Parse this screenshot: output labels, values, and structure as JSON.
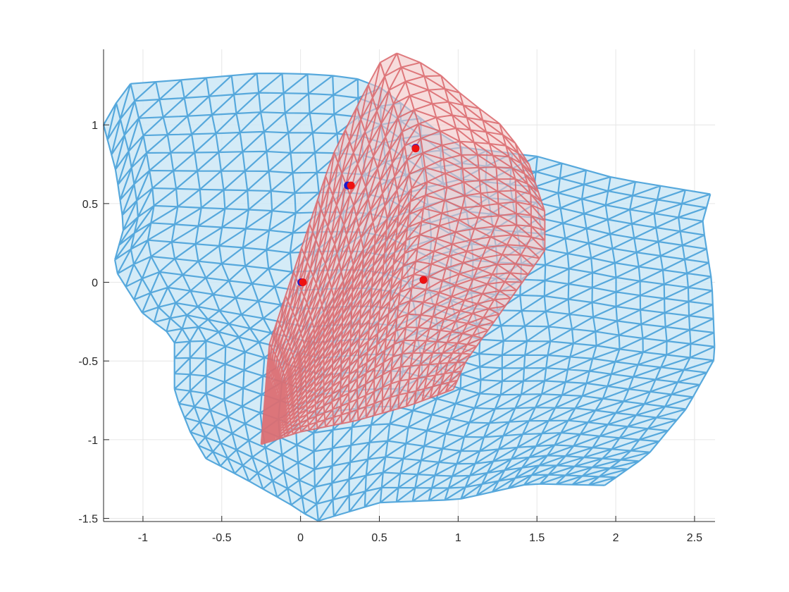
{
  "chart_data": {
    "type": "scatter",
    "title": "",
    "xlabel": "",
    "ylabel": "",
    "xlim": [
      -1.25,
      2.63
    ],
    "ylim": [
      -1.52,
      1.48
    ],
    "grid": true,
    "x_ticks": [
      -1,
      -0.5,
      0,
      0.5,
      1,
      1.5,
      2,
      2.5
    ],
    "x_tick_labels": [
      "-1",
      "-0.5",
      "0",
      "0.5",
      "1",
      "1.5",
      "2",
      "2.5"
    ],
    "y_ticks": [
      -1.5,
      -1,
      -0.5,
      0,
      0.5,
      1
    ],
    "y_tick_labels": [
      "-1.5",
      "-1",
      "-0.5",
      "0",
      "0.5",
      "1"
    ],
    "colors": {
      "mesh_blue_edge": "#56a8dc",
      "mesh_blue_fill": "#cde8f6",
      "mesh_red_edge": "#d96468",
      "mesh_red_fill": "#f2c4c4",
      "marker_blue": "#1a1acc",
      "marker_red": "#ee1111"
    },
    "series": [
      {
        "kind": "mesh",
        "color_key": "blue",
        "grid_u": 26,
        "grid_v": 24,
        "boundary": {
          "top": [
            [
              -1.25,
              1.0
            ],
            [
              -1.1,
              1.26
            ],
            [
              -0.7,
              1.29
            ],
            [
              -0.25,
              1.33
            ],
            [
              0.15,
              1.32
            ],
            [
              0.45,
              1.28
            ],
            [
              1.0,
              0.86
            ],
            [
              1.5,
              0.8
            ],
            [
              2.0,
              0.66
            ],
            [
              2.6,
              0.56
            ]
          ],
          "right": [
            [
              2.6,
              0.56
            ],
            [
              2.55,
              0.38
            ],
            [
              2.61,
              0.0
            ],
            [
              2.63,
              -0.48
            ],
            [
              2.45,
              -0.8
            ],
            [
              2.2,
              -1.1
            ],
            [
              1.93,
              -1.29
            ]
          ],
          "bottom": [
            [
              -0.6,
              -1.12
            ],
            [
              -0.35,
              -1.25
            ],
            [
              -0.05,
              -1.42
            ],
            [
              0.1,
              -1.52
            ],
            [
              0.5,
              -1.4
            ],
            [
              1.0,
              -1.38
            ],
            [
              1.45,
              -1.28
            ],
            [
              1.93,
              -1.29
            ]
          ],
          "left": [
            [
              -1.25,
              1.0
            ],
            [
              -1.17,
              0.7
            ],
            [
              -1.12,
              0.35
            ],
            [
              -1.19,
              0.1
            ],
            [
              -1.0,
              -0.2
            ],
            [
              -0.8,
              -0.35
            ],
            [
              -0.8,
              -0.7
            ],
            [
              -0.7,
              -0.95
            ],
            [
              -0.6,
              -1.12
            ]
          ]
        }
      },
      {
        "kind": "mesh",
        "color_key": "red",
        "grid_u": 24,
        "grid_v": 26,
        "boundary": {
          "top": [
            [
              -0.25,
              -1.03
            ],
            [
              -0.2,
              -0.4
            ],
            [
              0.0,
              0.2
            ],
            [
              0.2,
              0.8
            ],
            [
              0.4,
              1.2
            ],
            [
              0.55,
              1.48
            ],
            [
              0.85,
              1.36
            ],
            [
              0.93,
              1.27
            ],
            [
              1.1,
              1.13
            ],
            [
              1.3,
              0.98
            ],
            [
              1.45,
              0.75
            ]
          ],
          "right": [
            [
              1.45,
              0.75
            ],
            [
              1.55,
              0.45
            ],
            [
              1.55,
              0.2
            ],
            [
              1.3,
              -0.15
            ],
            [
              1.05,
              -0.5
            ],
            [
              0.97,
              -0.68
            ]
          ],
          "bottom": [
            [
              -0.25,
              -1.03
            ],
            [
              0.0,
              -0.95
            ],
            [
              0.35,
              -0.88
            ],
            [
              0.7,
              -0.78
            ],
            [
              0.97,
              -0.68
            ]
          ],
          "left": []
        }
      },
      {
        "name": "",
        "kind": "points",
        "marker": "blue",
        "x": [
          0.005,
          0.3,
          0.73,
          0.78
        ],
        "y": [
          0.0,
          0.615,
          0.855,
          0.015
        ]
      },
      {
        "name": "",
        "kind": "points",
        "marker": "red",
        "x": [
          0.015,
          0.32,
          0.73,
          0.78
        ],
        "y": [
          0.0,
          0.615,
          0.85,
          0.015
        ]
      }
    ]
  }
}
